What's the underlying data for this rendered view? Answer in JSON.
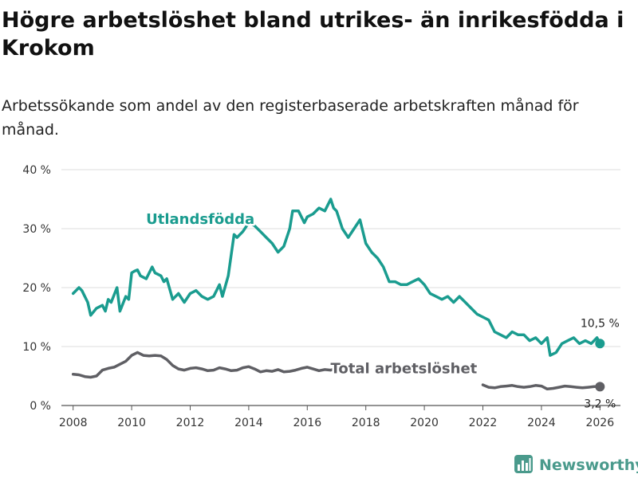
{
  "header": {
    "title": "Högre arbetslöshet bland utrikes- än inrikesfödda i Krokom",
    "subtitle": "Arbetssökande som andel av den registerbaserade arbetskraften månad för månad."
  },
  "brand": {
    "name": "Newsworthy",
    "icon": "newsworthy-logo-icon",
    "color": "#4a9a8c"
  },
  "chart_data": {
    "type": "line",
    "title": "Högre arbetslöshet bland utrikes- än inrikesfödda i Krokom",
    "subtitle": "Arbetssökande som andel av den registerbaserade arbetskraften månad för månad.",
    "xlabel": "",
    "ylabel": "",
    "xlim": [
      2007.6,
      2026.7
    ],
    "ylim": [
      0,
      40
    ],
    "x_ticks": [
      2008,
      2010,
      2012,
      2014,
      2016,
      2018,
      2020,
      2022,
      2024,
      2026
    ],
    "x_tick_labels": [
      "2008",
      "2010",
      "2012",
      "2014",
      "2016",
      "2018",
      "2020",
      "2022",
      "2024",
      "2026"
    ],
    "y_ticks": [
      0,
      10,
      20,
      30,
      40
    ],
    "y_tick_labels": [
      "0 %",
      "10 %",
      "20 %",
      "30 %",
      "40 %"
    ],
    "grid": true,
    "series": [
      {
        "name": "Utlandsfödda",
        "color": "#1a9c8f",
        "end_label": "10,5 %",
        "x": [
          2008.0,
          2008.2,
          2008.3,
          2008.5,
          2008.6,
          2008.8,
          2009.0,
          2009.1,
          2009.2,
          2009.3,
          2009.5,
          2009.6,
          2009.8,
          2009.9,
          2010.0,
          2010.1,
          2010.2,
          2010.3,
          2010.5,
          2010.7,
          2010.8,
          2011.0,
          2011.1,
          2011.2,
          2011.4,
          2011.6,
          2011.8,
          2012.0,
          2012.2,
          2012.4,
          2012.6,
          2012.8,
          2013.0,
          2013.1,
          2013.3,
          2013.5,
          2013.6,
          2013.8,
          2014.0,
          2014.2,
          2014.4,
          2014.6,
          2014.8,
          2015.0,
          2015.2,
          2015.4,
          2015.5,
          2015.7,
          2015.9,
          2016.0,
          2016.2,
          2016.4,
          2016.6,
          2016.8,
          2016.9,
          2017.0,
          2017.2,
          2017.4,
          2017.6,
          2017.8,
          2018.0,
          2018.2,
          2018.4,
          2018.6,
          2018.8,
          2019.0,
          2019.2,
          2019.4,
          2019.6,
          2019.8,
          2020.0,
          2020.2,
          2020.4,
          2020.6,
          2020.8,
          2021.0,
          2021.2,
          2021.4,
          2021.6,
          2021.8,
          2022.0,
          2022.2,
          2022.4,
          2022.6,
          2022.8,
          2023.0,
          2023.2,
          2023.4,
          2023.6,
          2023.8,
          2024.0,
          2024.2,
          2024.3,
          2024.5,
          2024.7,
          2024.9,
          2025.1,
          2025.3,
          2025.5,
          2025.7,
          2025.9,
          2026.0
        ],
        "values": [
          19.0,
          20.0,
          19.5,
          17.5,
          15.3,
          16.5,
          17.0,
          16.0,
          18.0,
          17.5,
          20.0,
          16.0,
          18.5,
          18.0,
          22.5,
          22.8,
          23.0,
          22.0,
          21.5,
          23.5,
          22.5,
          22.0,
          21.0,
          21.5,
          18.0,
          19.0,
          17.5,
          19.0,
          19.5,
          18.5,
          18.0,
          18.5,
          20.5,
          18.5,
          22.0,
          29.0,
          28.5,
          29.5,
          31.0,
          30.5,
          29.5,
          28.5,
          27.5,
          26.0,
          27.0,
          30.0,
          33.0,
          33.0,
          31.0,
          32.0,
          32.5,
          33.5,
          33.0,
          35.0,
          33.5,
          33.0,
          30.0,
          28.5,
          30.0,
          31.5,
          27.5,
          26.0,
          25.0,
          23.5,
          21.0,
          21.0,
          20.5,
          20.5,
          21.0,
          21.5,
          20.5,
          19.0,
          18.5,
          18.0,
          18.5,
          17.5,
          18.5,
          17.5,
          16.5,
          15.5,
          15.0,
          14.5,
          12.5,
          12.0,
          11.5,
          12.5,
          12.0,
          12.0,
          11.0,
          11.5,
          10.5,
          11.5,
          8.5,
          9.0,
          10.5,
          11.0,
          11.5,
          10.5,
          11.0,
          10.5,
          11.5,
          10.5
        ]
      },
      {
        "name": "Total arbetslöshet",
        "color": "#5f5f64",
        "end_label": "3,2 %",
        "x": [
          2008.0,
          2008.2,
          2008.4,
          2008.6,
          2008.8,
          2009.0,
          2009.2,
          2009.4,
          2009.6,
          2009.8,
          2010.0,
          2010.2,
          2010.4,
          2010.6,
          2010.8,
          2011.0,
          2011.2,
          2011.4,
          2011.6,
          2011.8,
          2012.0,
          2012.2,
          2012.4,
          2012.6,
          2012.8,
          2013.0,
          2013.2,
          2013.4,
          2013.6,
          2013.8,
          2014.0,
          2014.2,
          2014.4,
          2014.6,
          2014.8,
          2015.0,
          2015.2,
          2015.4,
          2015.6,
          2015.8,
          2016.0,
          2016.2,
          2016.4,
          2016.6,
          2016.8,
          2017.0,
          2017.2,
          2022.0,
          2022.2,
          2022.4,
          2022.6,
          2022.8,
          2023.0,
          2023.2,
          2023.4,
          2023.6,
          2023.8,
          2024.0,
          2024.2,
          2024.4,
          2024.6,
          2024.8,
          2025.0,
          2025.2,
          2025.4,
          2025.6,
          2025.8,
          2026.0
        ],
        "values": [
          5.3,
          5.2,
          4.9,
          4.8,
          5.0,
          6.0,
          6.3,
          6.5,
          7.0,
          7.5,
          8.5,
          9.0,
          8.5,
          8.4,
          8.5,
          8.4,
          7.8,
          6.8,
          6.2,
          6.0,
          6.3,
          6.4,
          6.2,
          5.9,
          6.0,
          6.4,
          6.2,
          5.9,
          6.0,
          6.4,
          6.6,
          6.2,
          5.7,
          5.9,
          5.8,
          6.1,
          5.7,
          5.8,
          6.0,
          6.3,
          6.5,
          6.2,
          5.9,
          6.1,
          6.0,
          6.3,
          6.1,
          3.5,
          3.1,
          3.0,
          3.2,
          3.3,
          3.4,
          3.2,
          3.1,
          3.2,
          3.4,
          3.3,
          2.8,
          2.9,
          3.1,
          3.3,
          3.2,
          3.1,
          3.0,
          3.1,
          3.2,
          3.2
        ]
      }
    ],
    "annotations": [
      {
        "text": "Utlandsfödda",
        "series": "Utlandsfödda",
        "x": 2014.2,
        "y": 30.8
      },
      {
        "text": "Total arbetslöshet",
        "series": "Total arbetslöshet",
        "x": 2019.3,
        "y": 5.5
      }
    ]
  }
}
